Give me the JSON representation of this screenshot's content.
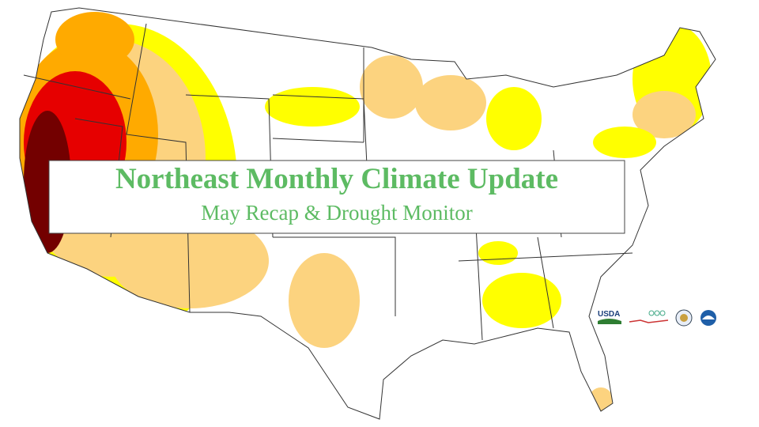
{
  "title": "Northeast Monthly Climate Update",
  "subtitle": "May Recap & Drought Monitor",
  "logos": {
    "usda": "USDA"
  }
}
